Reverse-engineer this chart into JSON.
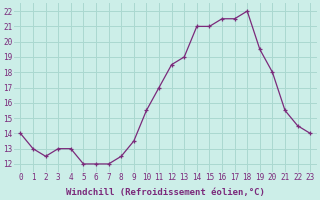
{
  "x": [
    0,
    1,
    2,
    3,
    4,
    5,
    6,
    7,
    8,
    9,
    10,
    11,
    12,
    13,
    14,
    15,
    16,
    17,
    18,
    19,
    20,
    21,
    22,
    23
  ],
  "y": [
    14,
    13,
    12.5,
    13,
    13,
    12,
    12,
    12,
    12.5,
    13.5,
    15.5,
    17,
    18.5,
    19,
    21,
    21,
    21.5,
    21.5,
    22,
    19.5,
    18,
    15.5,
    14.5,
    14
  ],
  "line_color": "#7b2a7b",
  "marker_color": "#7b2a7b",
  "bg_color": "#cceee8",
  "grid_color": "#aad8d0",
  "xlabel": "Windchill (Refroidissement éolien,°C)",
  "yticks": [
    12,
    13,
    14,
    15,
    16,
    17,
    18,
    19,
    20,
    21,
    22
  ],
  "xticks": [
    0,
    1,
    2,
    3,
    4,
    5,
    6,
    7,
    8,
    9,
    10,
    11,
    12,
    13,
    14,
    15,
    16,
    17,
    18,
    19,
    20,
    21,
    22,
    23
  ],
  "ylim": [
    11.5,
    22.5
  ],
  "xlim": [
    -0.5,
    23.5
  ],
  "tick_fontsize": 5.5,
  "xlabel_fontsize": 6.5
}
